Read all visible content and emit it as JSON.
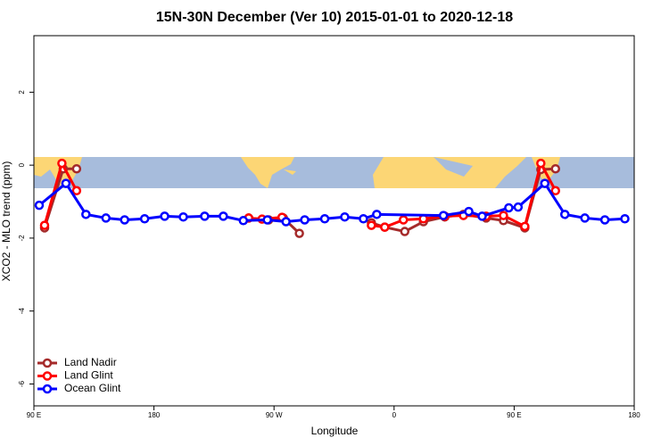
{
  "chart_data": {
    "type": "line",
    "title": "15N-30N December (Ver 10)   2015-01-01 to 2020-12-18",
    "x_label": "Longitude",
    "y_label": "XCO2 - MLO trend (ppm)",
    "xlim": [
      90,
      540
    ],
    "xticks": [
      {
        "value": 90,
        "label": "90 E"
      },
      180,
      {
        "value": 270,
        "label": "90 W"
      },
      {
        "value": 360,
        "label": "0"
      },
      {
        "value": 450,
        "label": "90 E"
      },
      {
        "value": 540,
        "label": "180"
      }
    ],
    "ylim": [
      -6.6,
      3.55
    ],
    "yticks": [
      -6,
      -4,
      -2,
      0,
      2
    ],
    "legend": "bottom-left",
    "series": [
      {
        "name": "Land Nadir",
        "color": "#a52a2a",
        "x": [
          98,
          112,
          122,
          null,
          251,
          266,
          277,
          289,
          null,
          343,
          353,
          368,
          382,
          398,
          412,
          429,
          442,
          458,
          470,
          481
        ],
        "values": [
          -1.72,
          -0.1,
          -0.1,
          null,
          -1.45,
          -1.5,
          -1.45,
          -1.87,
          null,
          -1.58,
          -1.7,
          -1.82,
          -1.55,
          -1.42,
          -1.35,
          -1.45,
          -1.52,
          -1.72,
          -0.12,
          -0.1
        ]
      },
      {
        "name": "Land Glint",
        "color": "#ff0000",
        "x": [
          98,
          111,
          122,
          null,
          251,
          261,
          276,
          null,
          343,
          353,
          367,
          382,
          398,
          412,
          429,
          442,
          458,
          470,
          481
        ],
        "values": [
          -1.65,
          0.05,
          -0.7,
          null,
          -1.45,
          -1.48,
          -1.43,
          null,
          -1.65,
          -1.7,
          -1.5,
          -1.47,
          -1.4,
          -1.38,
          -1.4,
          -1.38,
          -1.68,
          0.05,
          -0.7
        ]
      },
      {
        "name": "Ocean Glint",
        "color": "#0000ff",
        "x": [
          94,
          114,
          129,
          144,
          158,
          173,
          188,
          202,
          218,
          232,
          247,
          265,
          279,
          293,
          308,
          323,
          337,
          347,
          397,
          416,
          426,
          446,
          453,
          473,
          488,
          503,
          518,
          533
        ],
        "values": [
          -1.1,
          -0.5,
          -1.35,
          -1.45,
          -1.5,
          -1.47,
          -1.4,
          -1.42,
          -1.4,
          -1.4,
          -1.52,
          -1.5,
          -1.55,
          -1.5,
          -1.47,
          -1.42,
          -1.47,
          -1.35,
          -1.38,
          -1.27,
          -1.4,
          -1.17,
          -1.15,
          -0.5,
          -1.35,
          -1.45,
          -1.5,
          -1.47
        ]
      }
    ]
  }
}
